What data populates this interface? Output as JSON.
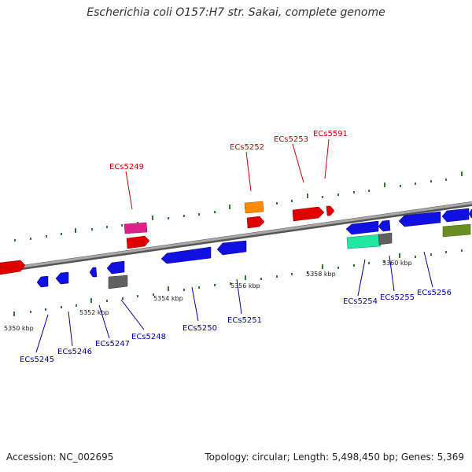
{
  "title": "Escherichia coli O157:H7 str. Sakai, complete genome",
  "footer": {
    "accession": "Accession: NC_002695",
    "summary": "Topology: circular; Length: 5,498,450 bp; Genes: 5,369"
  },
  "colors": {
    "top_label": "#cc0000",
    "bottom_label": "#0000aa",
    "backbone": "#8c8c8c",
    "tick_dots": "#2e8b2e"
  },
  "scale_labels": [
    "5350 kbp",
    "5352 kbp",
    "5354 kbp",
    "5356 kbp",
    "5358 kbp",
    "5360 kbp"
  ],
  "top_genes": [
    "ECs5249",
    "ECs5252",
    "ECs5253",
    "ECs5591"
  ],
  "bottom_genes": [
    "ECs5245",
    "ECs5246",
    "ECs5247",
    "ECs5248",
    "ECs5250",
    "ECs5251",
    "ECs5254",
    "ECs5255",
    "ECs5256"
  ]
}
